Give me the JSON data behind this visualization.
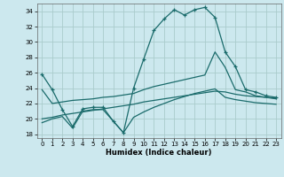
{
  "xlabel": "Humidex (Indice chaleur)",
  "ylabel": "",
  "bg_color": "#cce8ee",
  "grid_color": "#b0d0d8",
  "line_color": "#1a6b6b",
  "xlim": [
    -0.5,
    23.5
  ],
  "ylim": [
    17.5,
    35.0
  ],
  "xticks": [
    0,
    1,
    2,
    3,
    4,
    5,
    6,
    7,
    8,
    9,
    10,
    11,
    12,
    13,
    14,
    15,
    16,
    17,
    18,
    19,
    20,
    21,
    22,
    23
  ],
  "yticks": [
    18,
    20,
    22,
    24,
    26,
    28,
    30,
    32,
    34
  ],
  "line1_x": [
    0,
    1,
    2,
    3,
    4,
    5,
    6,
    7,
    8,
    9,
    10,
    11,
    12,
    13,
    14,
    15,
    16,
    17,
    18,
    19,
    20,
    21,
    22,
    23
  ],
  "line1_y": [
    25.8,
    23.8,
    21.2,
    19.0,
    21.3,
    21.5,
    21.5,
    19.7,
    18.2,
    24.0,
    27.8,
    31.5,
    33.0,
    34.2,
    33.5,
    34.2,
    34.5,
    33.2,
    28.7,
    26.8,
    23.8,
    23.5,
    23.0,
    22.8
  ],
  "line2_x": [
    0,
    1,
    2,
    3,
    4,
    5,
    6,
    7,
    8,
    9,
    10,
    11,
    12,
    13,
    14,
    15,
    16,
    17,
    18,
    19,
    20,
    21,
    22,
    23
  ],
  "line2_y": [
    23.8,
    22.0,
    22.2,
    22.4,
    22.5,
    22.6,
    22.8,
    22.9,
    23.1,
    23.3,
    23.8,
    24.2,
    24.5,
    24.8,
    25.1,
    25.4,
    25.7,
    28.7,
    26.7,
    23.8,
    23.5,
    23.0,
    22.8,
    22.6
  ],
  "line3_x": [
    0,
    1,
    2,
    3,
    4,
    5,
    6,
    7,
    8,
    9,
    10,
    11,
    12,
    13,
    14,
    15,
    16,
    17,
    18,
    19,
    20,
    21,
    22,
    23
  ],
  "line3_y": [
    20.0,
    20.2,
    20.5,
    20.7,
    20.9,
    21.1,
    21.3,
    21.5,
    21.7,
    21.9,
    22.2,
    22.4,
    22.6,
    22.8,
    23.0,
    23.2,
    23.4,
    23.6,
    23.5,
    23.2,
    23.0,
    22.9,
    22.8,
    22.7
  ],
  "line4_x": [
    0,
    1,
    2,
    3,
    4,
    5,
    6,
    7,
    8,
    9,
    10,
    11,
    12,
    13,
    14,
    15,
    16,
    17,
    18,
    19,
    20,
    21,
    22,
    23
  ],
  "line4_y": [
    19.5,
    20.0,
    20.3,
    18.8,
    21.0,
    21.2,
    21.2,
    19.7,
    18.2,
    20.2,
    20.9,
    21.5,
    22.0,
    22.5,
    22.9,
    23.3,
    23.6,
    23.9,
    22.8,
    22.5,
    22.3,
    22.1,
    22.0,
    21.9
  ]
}
